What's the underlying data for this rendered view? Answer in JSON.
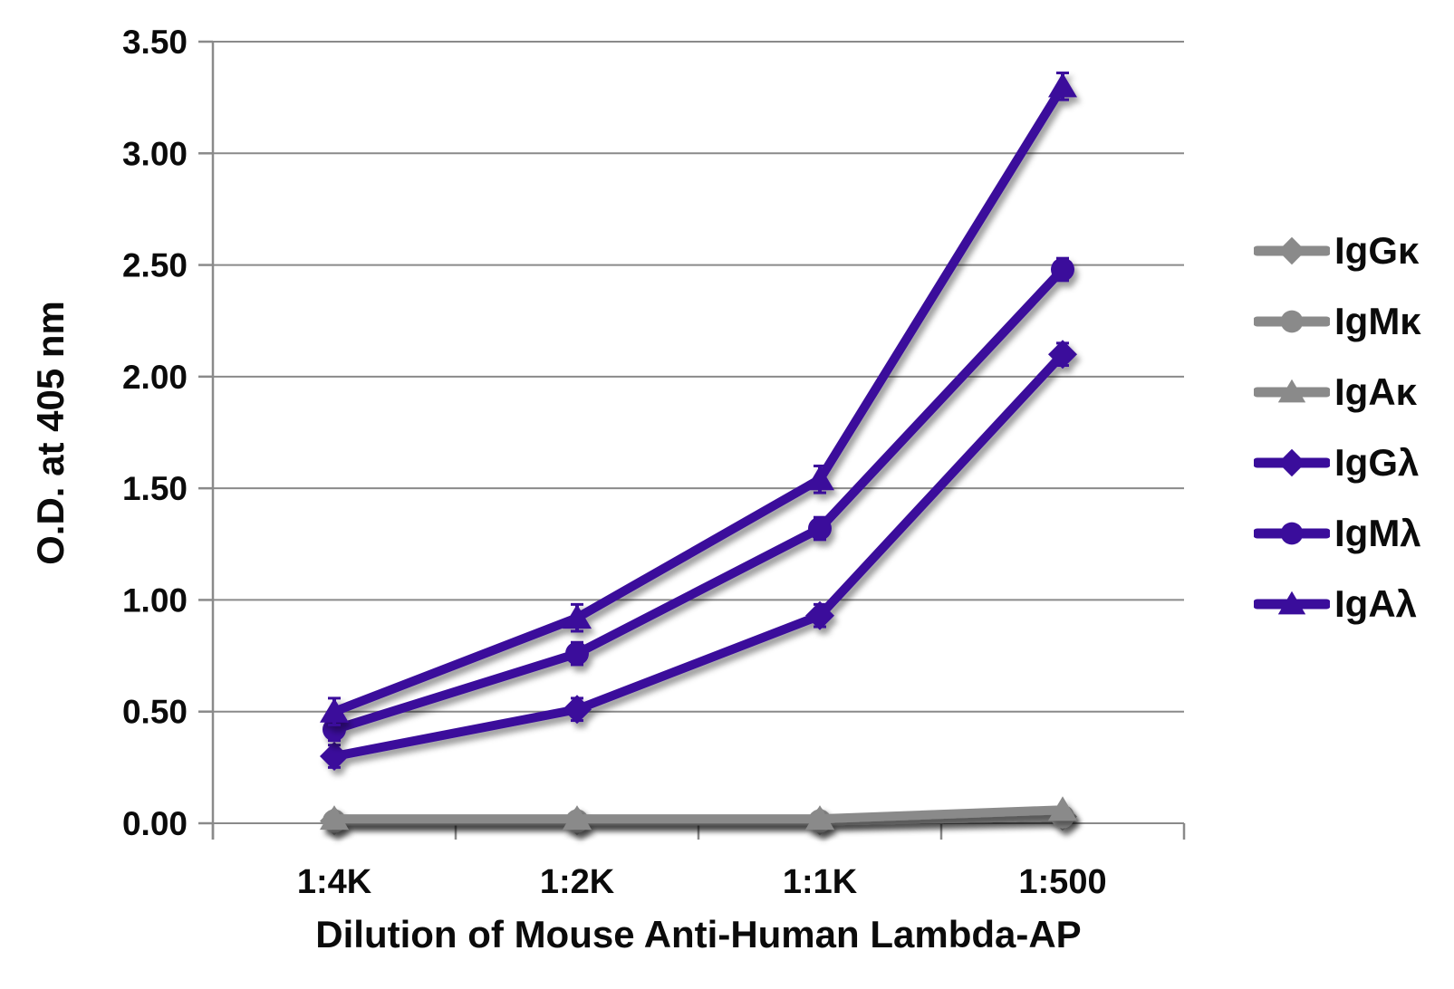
{
  "page": {
    "background": "#ffffff"
  },
  "chart_data": {
    "type": "line",
    "title": "",
    "xlabel": "Dilution of Mouse Anti-Human Lambda-AP",
    "ylabel": "O.D. at 405 nm",
    "categories": [
      "1:4K",
      "1:2K",
      "1:1K",
      "1:500"
    ],
    "ylim": [
      0,
      3.5
    ],
    "ytick_step": 0.5,
    "ytick_labels": [
      "0.00",
      "0.50",
      "1.00",
      "1.50",
      "2.00",
      "2.50",
      "3.00",
      "3.50"
    ],
    "grid": true,
    "legend_position": "right",
    "axis_color": "#8a8a8a",
    "gridline_color": "#8a8a8a",
    "text_color": "#0b0b0b",
    "series": [
      {
        "name": "IgGκ",
        "color": "#8a8a8a",
        "marker": "diamond",
        "values": [
          0.01,
          0.01,
          0.01,
          0.03
        ],
        "error": 0
      },
      {
        "name": "IgMκ",
        "color": "#8a8a8a",
        "marker": "circle",
        "values": [
          0.01,
          0.01,
          0.01,
          0.03
        ],
        "error": 0
      },
      {
        "name": "IgAκ",
        "color": "#8a8a8a",
        "marker": "triangle",
        "values": [
          0.02,
          0.02,
          0.02,
          0.06
        ],
        "error": 0
      },
      {
        "name": "IgGλ",
        "color": "#3a0d9b",
        "marker": "diamond",
        "values": [
          0.3,
          0.51,
          0.93,
          2.1
        ],
        "error": 0.05
      },
      {
        "name": "IgMλ",
        "color": "#3a0d9b",
        "marker": "circle",
        "values": [
          0.42,
          0.76,
          1.32,
          2.48
        ],
        "error": 0.05
      },
      {
        "name": "IgAλ",
        "color": "#3a0d9b",
        "marker": "triangle",
        "values": [
          0.5,
          0.92,
          1.54,
          3.3
        ],
        "error": 0.06
      }
    ]
  }
}
